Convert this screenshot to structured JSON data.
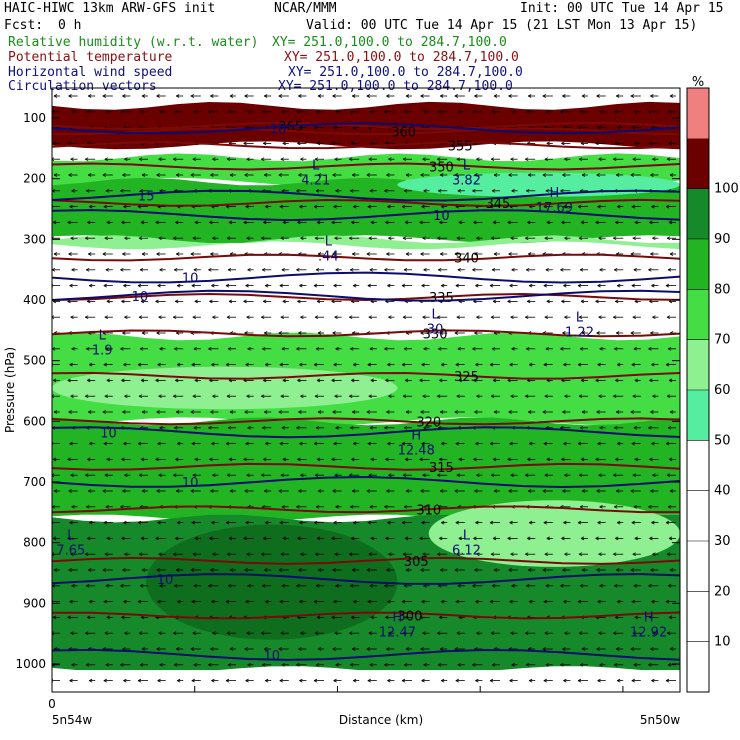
{
  "header": {
    "model_line": "HAIC-HIWC 13km ARW-GFS init",
    "org": "NCAR/MMM",
    "init": "Init: 00 UTC Tue 14 Apr 15",
    "fcst_label": "Fcst:",
    "fcst_value": "0 h",
    "valid": "Valid: 00 UTC Tue 14 Apr 15 (21 LST Mon 13 Apr 15)",
    "fields": [
      {
        "name": "Relative humidity (w.r.t. water)",
        "xy": "XY= 251.0,100.0 to 284.7,100.0",
        "color": "#1a8c1a"
      },
      {
        "name": "Potential temperature",
        "xy": "XY= 251.0,100.0 to 284.7,100.0",
        "color": "#8b1010"
      },
      {
        "name": "Horizontal wind speed",
        "xy": "XY= 251.0,100.0 to 284.7,100.0",
        "color": "#101080"
      },
      {
        "name": "Circulation vectors",
        "xy": "XY= 251.0,100.0 to 284.7,100.0",
        "color": "#101080"
      }
    ]
  },
  "chart_data": {
    "type": "heatmap",
    "ylabel": "Pressure (hPa)",
    "xlabel": "Distance (km)",
    "x_tick_zero": "0",
    "x_left_label": "5n54w",
    "x_right_label": "5n50w",
    "y_ticks": [
      100,
      200,
      300,
      400,
      500,
      600,
      700,
      800,
      900,
      1000
    ],
    "ylim": [
      1000,
      80
    ],
    "colorbar": {
      "unit": "%",
      "ticks": [
        10,
        20,
        30,
        40,
        50,
        60,
        70,
        80,
        90,
        100
      ],
      "bins": [
        {
          "from": 0,
          "to": 50,
          "color": "#ffffff"
        },
        {
          "from": 50,
          "to": 60,
          "color": "#55eea0"
        },
        {
          "from": 60,
          "to": 70,
          "color": "#8ef090"
        },
        {
          "from": 70,
          "to": 80,
          "color": "#44dd44"
        },
        {
          "from": 80,
          "to": 90,
          "color": "#22b422"
        },
        {
          "from": 90,
          "to": 100,
          "color": "#168a2a"
        },
        {
          "from": 100,
          "to": 110,
          "color": "#6b0000"
        },
        {
          "from": 110,
          "to": 120,
          "color": "#f08080"
        }
      ]
    },
    "rh_layers": [
      {
        "top": 80,
        "bottom": 145,
        "color": "#6b0000"
      },
      {
        "top": 165,
        "bottom": 205,
        "color": "#44dd44"
      },
      {
        "top": 205,
        "bottom": 300,
        "color": "#22b422"
      },
      {
        "top": 300,
        "bottom": 310,
        "color": "#8ef090"
      },
      {
        "top": 460,
        "bottom": 600,
        "color": "#44dd44"
      },
      {
        "top": 600,
        "bottom": 760,
        "color": "#22b422"
      },
      {
        "top": 760,
        "bottom": 1010,
        "color": "#168a2a"
      }
    ],
    "rh_patches": [
      {
        "x": [
          0.0,
          0.55
        ],
        "top": 510,
        "bottom": 580,
        "color": "#8ef090"
      },
      {
        "x": [
          0.55,
          1.0
        ],
        "top": 190,
        "bottom": 230,
        "color": "#55eea0"
      },
      {
        "x": [
          0.6,
          1.0
        ],
        "top": 730,
        "bottom": 840,
        "color": "#8ef090"
      },
      {
        "x": [
          0.15,
          0.55
        ],
        "top": 770,
        "bottom": 960,
        "color": "#0e6e1e"
      }
    ],
    "theta_isolines": [
      {
        "value": 365,
        "p": 113,
        "label_x": 0.38
      },
      {
        "value": 360,
        "p": 122,
        "label_x": 0.56
      },
      {
        "value": 355,
        "p": 145,
        "label_x": 0.65
      },
      {
        "value": 350,
        "p": 180,
        "label_x": 0.62
      },
      {
        "value": 345,
        "p": 240,
        "label_x": 0.71
      },
      {
        "value": 340,
        "p": 330,
        "label_x": 0.66
      },
      {
        "value": 335,
        "p": 395,
        "label_x": 0.62
      },
      {
        "value": 330,
        "p": 455,
        "label_x": 0.61
      },
      {
        "value": 325,
        "p": 525,
        "label_x": 0.66
      },
      {
        "value": 320,
        "p": 600,
        "label_x": 0.6
      },
      {
        "value": 315,
        "p": 675,
        "label_x": 0.62
      },
      {
        "value": 310,
        "p": 745,
        "label_x": 0.6
      },
      {
        "value": 305,
        "p": 830,
        "label_x": 0.58
      },
      {
        "value": 300,
        "p": 920,
        "label_x": 0.57
      }
    ],
    "wind_isolines": [
      {
        "value": 10,
        "p": 117,
        "label_x": 0.36
      },
      {
        "value": 15,
        "p": 228,
        "label_x": 0.15
      },
      {
        "value": 10,
        "p": 260,
        "label_x": 0.62
      },
      {
        "value": 10,
        "p": 363,
        "label_x": 0.22
      },
      {
        "value": 10,
        "p": 393,
        "label_x": 0.14
      },
      {
        "value": 10,
        "p": 618,
        "label_x": 0.09
      },
      {
        "value": 10,
        "p": 700,
        "label_x": 0.22
      },
      {
        "value": 10,
        "p": 860,
        "label_x": 0.18
      },
      {
        "value": 10,
        "p": 985,
        "label_x": 0.35
      }
    ],
    "extrema": [
      {
        "mark": "L",
        "value": "4.21",
        "x": 0.42,
        "p": 195
      },
      {
        "mark": "L",
        "value": "3.82",
        "x": 0.66,
        "p": 195
      },
      {
        "mark": "H",
        "value": "17.69",
        "x": 0.8,
        "p": 240
      },
      {
        "mark": "L",
        "value": ".44",
        "x": 0.44,
        "p": 320
      },
      {
        "mark": "L",
        "value": "1.9",
        "x": 0.08,
        "p": 475
      },
      {
        "mark": "L",
        "value": "30",
        "x": 0.61,
        "p": 440
      },
      {
        "mark": "L",
        "value": "1.22",
        "x": 0.84,
        "p": 445
      },
      {
        "mark": "H",
        "value": "12.48",
        "x": 0.58,
        "p": 640
      },
      {
        "mark": "L",
        "value": "7.65",
        "x": 0.03,
        "p": 805
      },
      {
        "mark": "L",
        "value": "6.12",
        "x": 0.66,
        "p": 805
      },
      {
        "mark": "H",
        "value": "12.47",
        "x": 0.55,
        "p": 940
      },
      {
        "mark": "H",
        "value": "12.92",
        "x": 0.95,
        "p": 940
      }
    ],
    "vectors_direction": "westward"
  }
}
